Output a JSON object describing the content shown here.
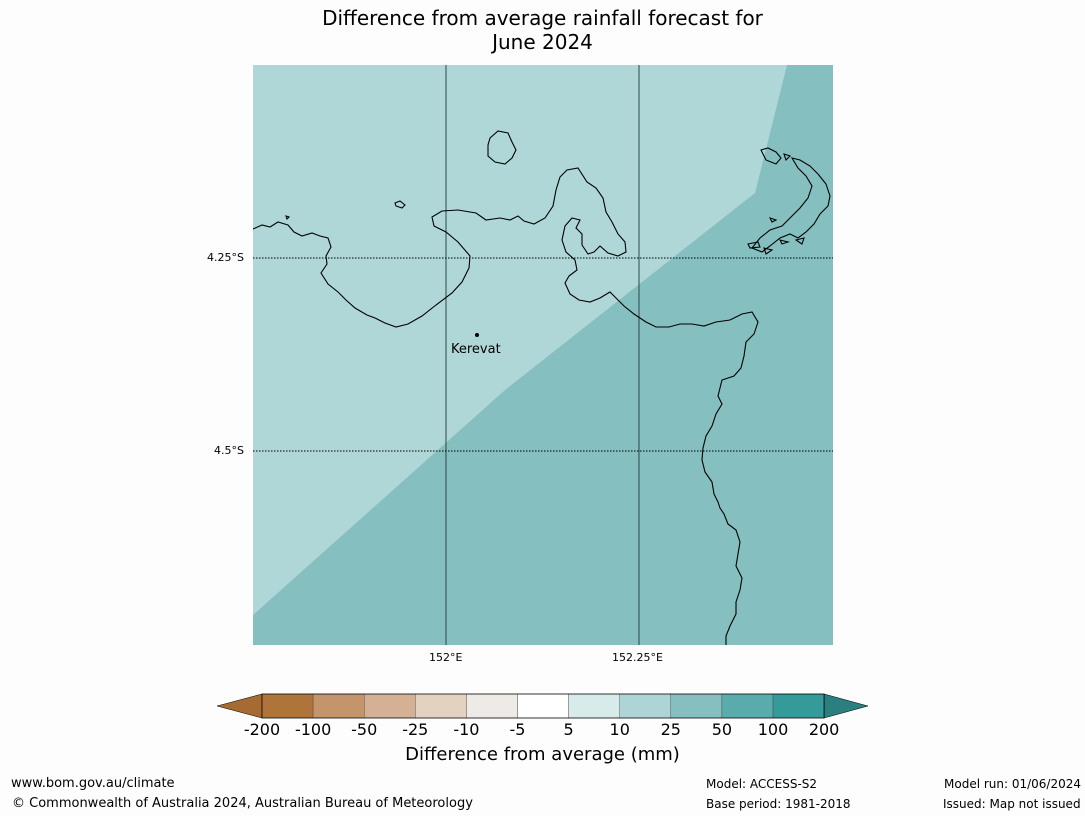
{
  "title_line1": "Difference from average rainfall forecast for",
  "title_line2": "June 2024",
  "map": {
    "lat_labels": [
      "4.25°S",
      "4.5°S"
    ],
    "lon_labels": [
      "152°E",
      "152.25°E"
    ],
    "place": "Kerevat",
    "colors": {
      "light_region": "#afd7d7",
      "dark_region": "#86bfbf",
      "coastline": "#000000",
      "meridian": "#2f4a4a"
    }
  },
  "colorbar": {
    "ticks": [
      "-200",
      "-100",
      "-50",
      "-25",
      "-10",
      "-5",
      "5",
      "10",
      "25",
      "50",
      "100",
      "200"
    ],
    "colors": [
      "#a56b32",
      "#af743a",
      "#c4946a",
      "#d4b194",
      "#e4d2c1",
      "#eeeae5",
      "#ffffff",
      "#d7ebea",
      "#add5d5",
      "#86bfbf",
      "#5aacac",
      "#349a9a",
      "#2b7f7f"
    ],
    "label": "Difference from average (mm)"
  },
  "footer": {
    "website": "www.bom.gov.au/climate",
    "copyright": "© Commonwealth of Australia 2024, Australian Bureau of Meteorology",
    "model": "Model: ACCESS-S2",
    "base_period": "Base period: 1981-2018",
    "model_run": "Model run: 01/06/2024",
    "issued": "Issued: Map not issued"
  }
}
